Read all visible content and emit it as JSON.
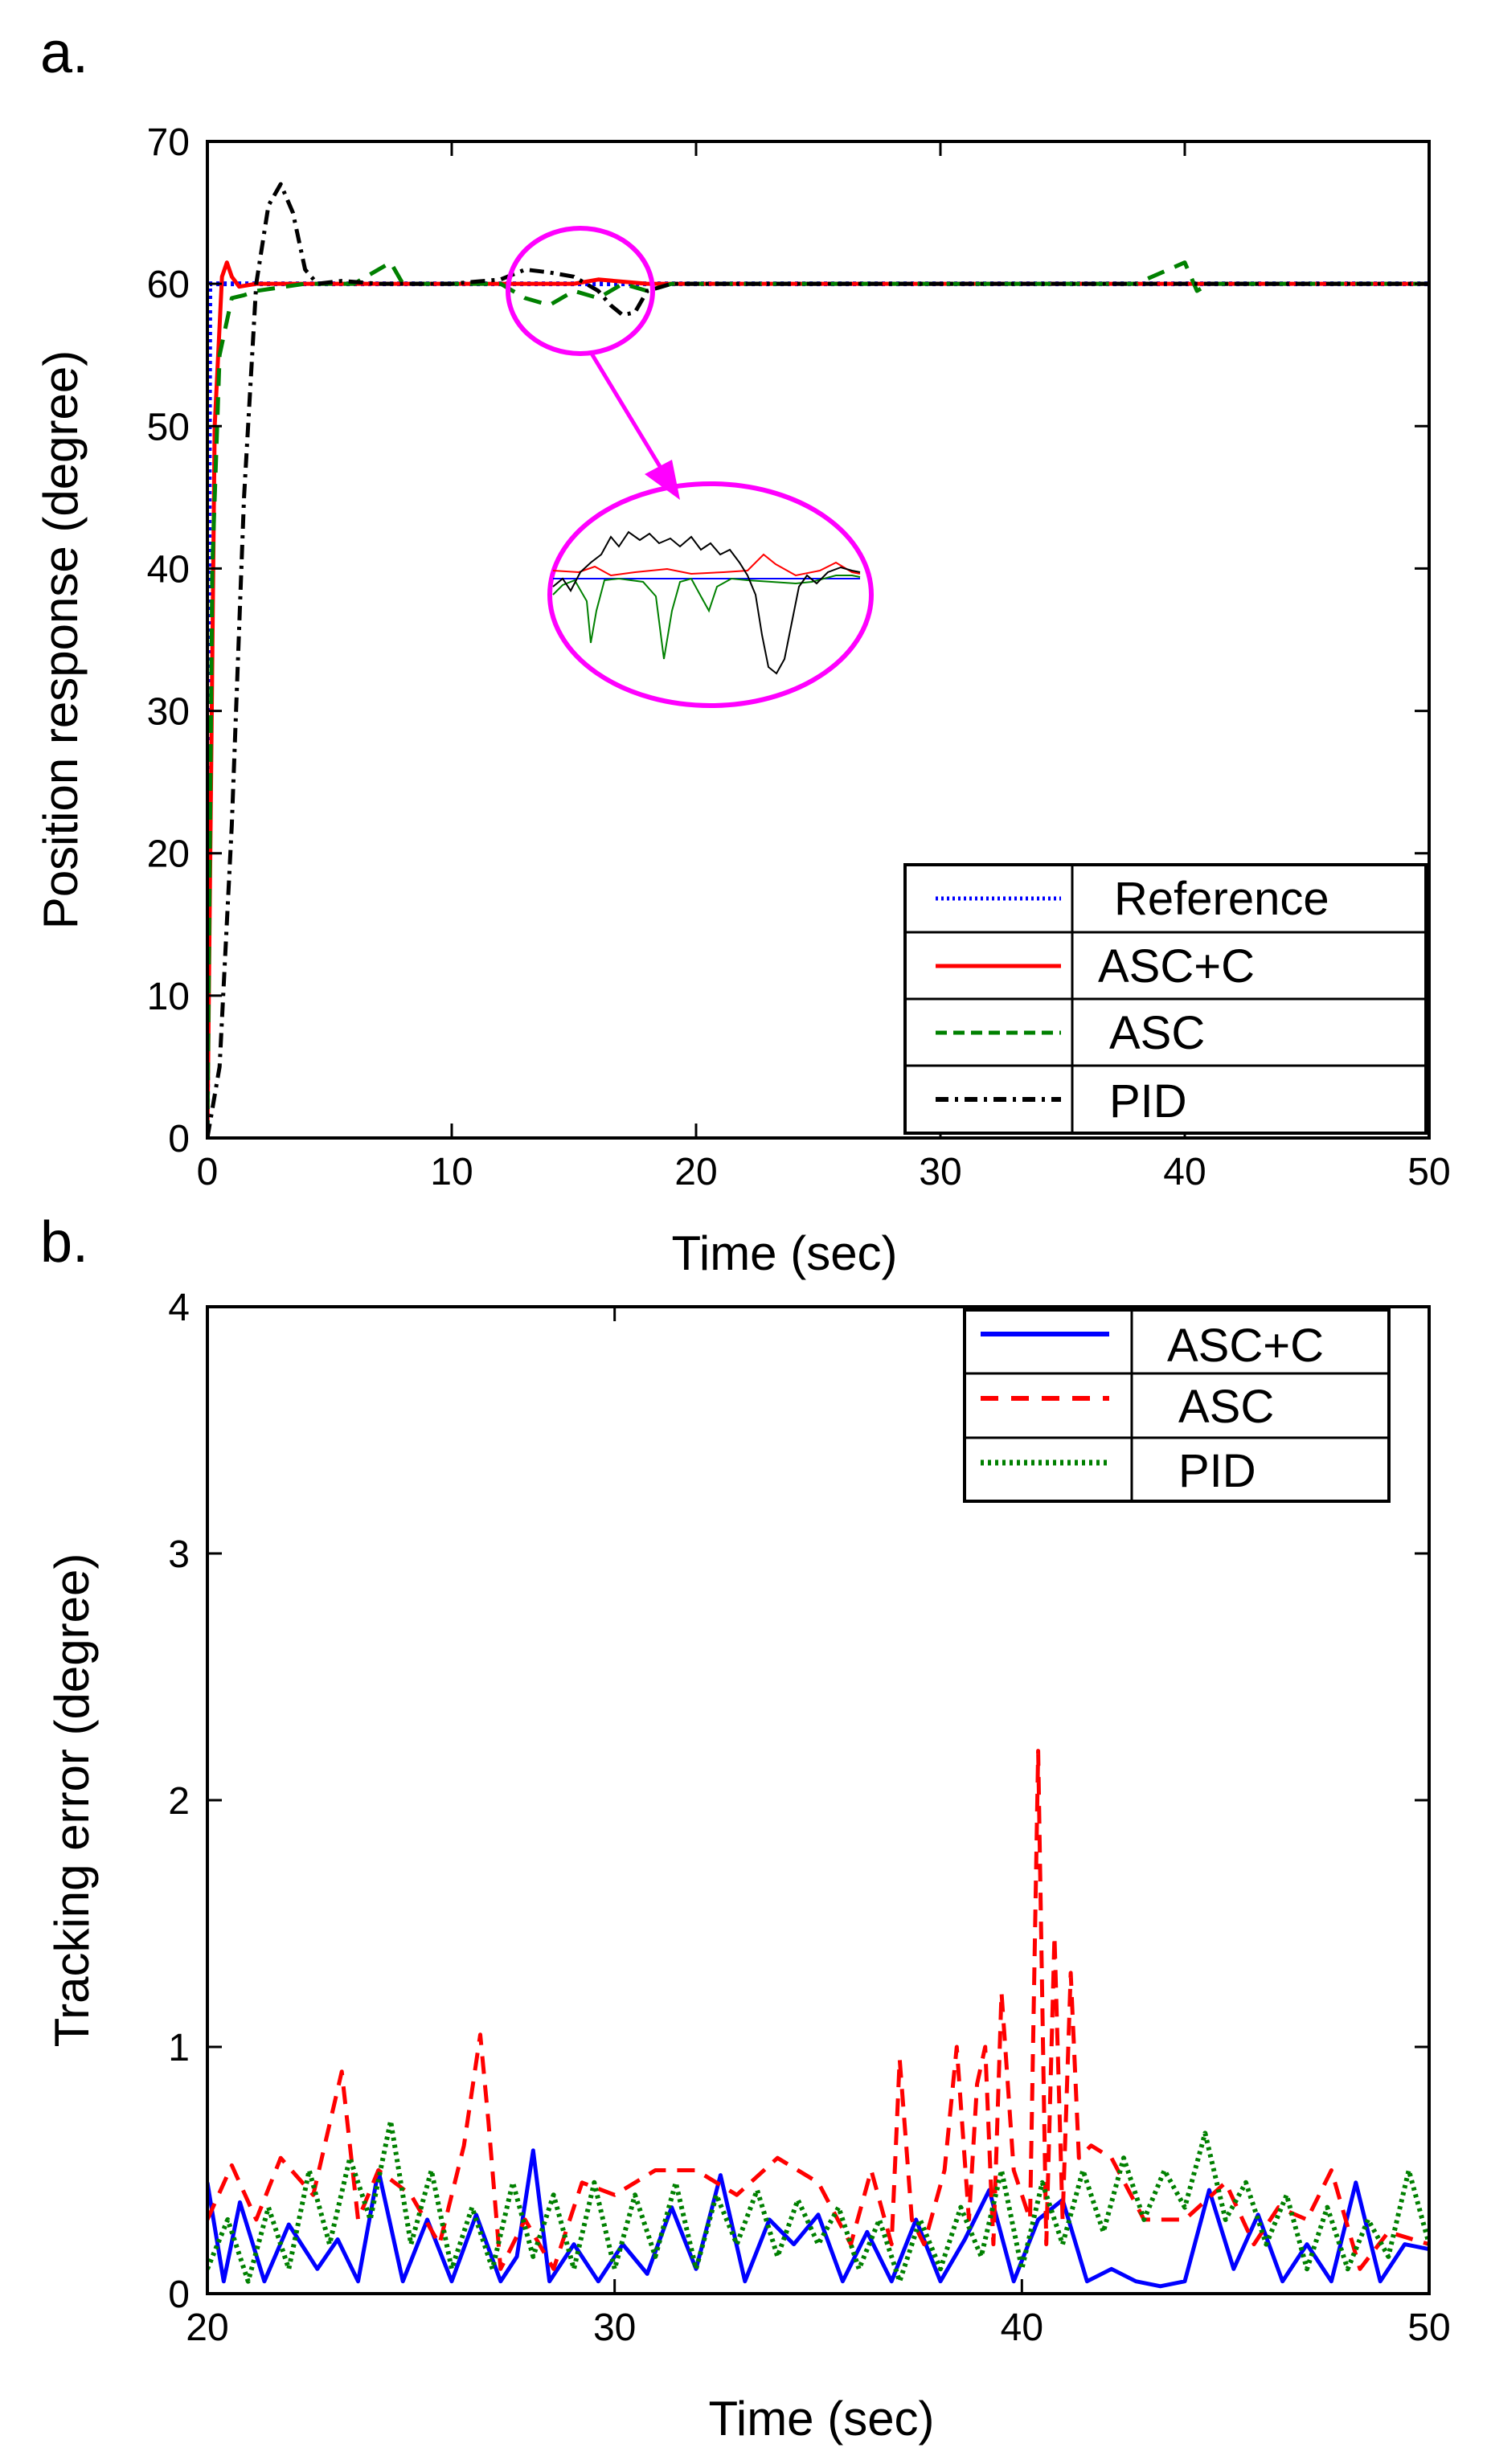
{
  "chart_data": [
    {
      "panel_label": "a.",
      "type": "line",
      "xlabel": "Time (sec)",
      "ylabel": "Position response (degree)",
      "xlim": [
        0,
        50
      ],
      "ylim": [
        0,
        70
      ],
      "xticks": [
        0,
        10,
        20,
        30,
        40,
        50
      ],
      "yticks": [
        0,
        10,
        20,
        30,
        40,
        50,
        60,
        70
      ],
      "legend_position": "bottom-right",
      "inset": "zoomed detail of all responses around t = 13-19 sec",
      "series": [
        {
          "name": "Reference",
          "color": "#0000ff",
          "style": "dotted",
          "x": [
            0,
            0.1,
            50
          ],
          "y": [
            0,
            60,
            60
          ]
        },
        {
          "name": "ASC+C",
          "color": "#ff0000",
          "style": "solid",
          "x": [
            0,
            0.3,
            0.6,
            0.8,
            1.0,
            1.3,
            2,
            5,
            10,
            15,
            16,
            18,
            20,
            30,
            40,
            50
          ],
          "y": [
            0,
            50,
            60.5,
            61.5,
            60.5,
            59.8,
            60,
            60,
            60,
            60,
            60.3,
            60,
            60,
            60,
            60,
            60
          ]
        },
        {
          "name": "ASC",
          "color": "#008000",
          "style": "dashed",
          "x": [
            0,
            0.2,
            0.5,
            1.0,
            1.5,
            2,
            4,
            6,
            7.5,
            8,
            10,
            12,
            13,
            14,
            15,
            16,
            17,
            18,
            19,
            20,
            25,
            30,
            35,
            38,
            40,
            40.5,
            41,
            45,
            50
          ],
          "y": [
            0,
            40,
            55,
            59,
            59.2,
            59.5,
            60,
            60,
            61.5,
            60,
            60,
            60,
            59,
            58.5,
            59.5,
            59,
            60,
            59.5,
            60,
            60,
            60,
            60,
            60,
            60,
            61.5,
            59.5,
            60,
            60,
            60
          ]
        },
        {
          "name": "PID",
          "color": "#000000",
          "style": "dashdot",
          "x": [
            0,
            0.5,
            1.0,
            1.5,
            2.0,
            2.5,
            3.0,
            3.5,
            4.0,
            4.5,
            5.5,
            7,
            10,
            12,
            13,
            14,
            15,
            16,
            16.5,
            17,
            17.5,
            18,
            19,
            20,
            25,
            30,
            35,
            40,
            45,
            50
          ],
          "y": [
            0,
            5,
            22,
            45,
            60,
            65.5,
            67,
            65,
            61,
            60,
            60.2,
            60,
            60,
            60.3,
            61,
            60.8,
            60.5,
            59.5,
            58.5,
            57.8,
            58,
            59.5,
            60,
            60,
            60,
            60,
            60,
            60,
            60,
            60
          ]
        }
      ]
    },
    {
      "panel_label": "b.",
      "type": "line",
      "xlabel": "Time (sec)",
      "ylabel": "Tracking error (degree)",
      "xlim": [
        20,
        50
      ],
      "ylim": [
        0,
        4
      ],
      "xticks": [
        20,
        30,
        40,
        50
      ],
      "yticks": [
        0,
        1,
        2,
        3,
        4
      ],
      "legend_position": "top-right",
      "series": [
        {
          "name": "ASC+C",
          "color": "#0000ff",
          "style": "solid",
          "x": [
            20,
            20.4,
            20.8,
            21.4,
            22,
            22.7,
            23.2,
            23.7,
            24.2,
            24.8,
            25.4,
            26,
            26.6,
            27.2,
            27.6,
            28,
            28.4,
            29,
            29.6,
            30.2,
            30.8,
            31.4,
            32,
            32.6,
            33.2,
            33.8,
            34.4,
            35,
            35.6,
            36.2,
            36.8,
            37.4,
            38,
            38.6,
            39.2,
            39.8,
            40.4,
            41,
            41.6,
            42.2,
            42.8,
            43.4,
            44,
            44.6,
            45.2,
            45.8,
            46.4,
            47,
            47.6,
            48.2,
            48.8,
            49.4,
            50
          ],
          "y": [
            0.45,
            0.05,
            0.37,
            0.05,
            0.28,
            0.1,
            0.22,
            0.05,
            0.5,
            0.05,
            0.3,
            0.05,
            0.32,
            0.05,
            0.15,
            0.58,
            0.05,
            0.2,
            0.05,
            0.2,
            0.08,
            0.35,
            0.1,
            0.48,
            0.05,
            0.3,
            0.2,
            0.32,
            0.05,
            0.25,
            0.05,
            0.3,
            0.05,
            0.22,
            0.42,
            0.05,
            0.3,
            0.38,
            0.05,
            0.1,
            0.05,
            0.03,
            0.05,
            0.42,
            0.1,
            0.32,
            0.05,
            0.2,
            0.05,
            0.45,
            0.05,
            0.2,
            0.18
          ]
        },
        {
          "name": "ASC",
          "color": "#ff0000",
          "style": "dashed",
          "x": [
            20,
            20.6,
            21.2,
            21.8,
            22.6,
            23.3,
            23.7,
            24.2,
            25,
            25.7,
            26.3,
            26.7,
            26.9,
            27.2,
            27.8,
            28.5,
            29.2,
            30,
            31,
            32,
            33,
            34,
            35,
            35.8,
            36.3,
            36.8,
            37,
            37.3,
            37.6,
            38.1,
            38.4,
            38.7,
            38.9,
            39.1,
            39.3,
            39.5,
            39.8,
            40.2,
            40.4,
            40.6,
            40.8,
            41,
            41.2,
            41.4,
            41.7,
            42.2,
            43,
            44,
            45,
            45.7,
            46.3,
            47,
            47.6,
            48.3,
            49,
            50
          ],
          "y": [
            0.3,
            0.52,
            0.3,
            0.55,
            0.4,
            0.9,
            0.3,
            0.5,
            0.4,
            0.2,
            0.6,
            1.05,
            0.7,
            0.1,
            0.3,
            0.1,
            0.45,
            0.4,
            0.5,
            0.5,
            0.4,
            0.55,
            0.45,
            0.2,
            0.5,
            0.2,
            0.95,
            0.3,
            0.2,
            0.5,
            1.0,
            0.3,
            0.85,
            1.0,
            0.2,
            1.22,
            0.5,
            0.3,
            2.2,
            0.2,
            1.45,
            0.3,
            1.3,
            0.55,
            0.6,
            0.55,
            0.3,
            0.3,
            0.45,
            0.2,
            0.35,
            0.3,
            0.5,
            0.1,
            0.25,
            0.2
          ]
        },
        {
          "name": "PID",
          "color": "#008000",
          "style": "dotted",
          "x": [
            20,
            20.5,
            21,
            21.5,
            22,
            22.5,
            23,
            23.5,
            24,
            24.5,
            25,
            25.5,
            26,
            26.5,
            27,
            27.5,
            28,
            28.5,
            29,
            29.5,
            30,
            30.5,
            31,
            31.5,
            32,
            32.5,
            33,
            33.5,
            34,
            34.5,
            35,
            35.5,
            36,
            36.5,
            37,
            37.5,
            38,
            38.5,
            39,
            39.5,
            40,
            40.5,
            41,
            41.5,
            42,
            42.5,
            43,
            43.5,
            44,
            44.5,
            45,
            45.5,
            46,
            46.5,
            47,
            47.5,
            48,
            48.5,
            49,
            49.5,
            50
          ],
          "y": [
            0.1,
            0.3,
            0.05,
            0.35,
            0.1,
            0.5,
            0.2,
            0.55,
            0.3,
            0.7,
            0.2,
            0.5,
            0.1,
            0.35,
            0.1,
            0.45,
            0.15,
            0.4,
            0.1,
            0.45,
            0.1,
            0.4,
            0.15,
            0.45,
            0.1,
            0.4,
            0.2,
            0.42,
            0.15,
            0.38,
            0.2,
            0.35,
            0.1,
            0.3,
            0.05,
            0.3,
            0.1,
            0.35,
            0.15,
            0.5,
            0.1,
            0.45,
            0.2,
            0.5,
            0.25,
            0.55,
            0.3,
            0.5,
            0.35,
            0.65,
            0.3,
            0.45,
            0.2,
            0.4,
            0.1,
            0.35,
            0.1,
            0.3,
            0.15,
            0.5,
            0.2
          ]
        }
      ]
    }
  ]
}
